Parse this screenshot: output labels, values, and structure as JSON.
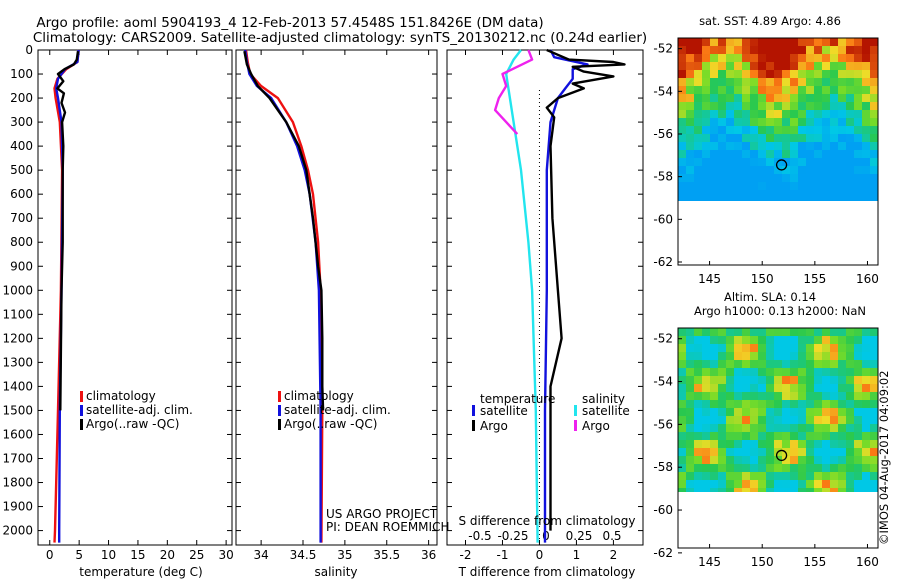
{
  "header": {
    "line1": "Argo profile: aoml 5904193_4 12-Feb-2013 57.4548S 151.8426E (DM data)",
    "line2": "Climatology: CARS2009. Satellite-adjusted climatology: synTS_20130212.nc (0.24d earlier)"
  },
  "colors": {
    "climatology": "#ee1111",
    "satellite": "#1111dd",
    "argo": "#000000",
    "salinity_satellite": "#22e5ee",
    "salinity_argo": "#ee22ee"
  },
  "chart_data": [
    {
      "type": "line",
      "xlabel": "temperature (deg C)",
      "ylabel": "",
      "xlim": [
        -2,
        31
      ],
      "ylim": [
        2060,
        0
      ],
      "xticks": [
        0,
        5,
        10,
        15,
        20,
        25,
        30
      ],
      "yticks": [
        0,
        100,
        200,
        300,
        400,
        500,
        600,
        700,
        800,
        900,
        1000,
        1100,
        1200,
        1300,
        1400,
        1500,
        1600,
        1700,
        1800,
        1900,
        2000
      ],
      "legend": [
        "climatology",
        "satellite-adj. clim.",
        "Argo(..raw -QC)"
      ],
      "series": [
        {
          "name": "climatology",
          "y": [
            0,
            50,
            80,
            120,
            160,
            200,
            300,
            500,
            1000,
            1500,
            2000,
            2050
          ],
          "x": [
            4.9,
            4.7,
            2.8,
            1.3,
            0.8,
            1.0,
            1.7,
            2.1,
            1.9,
            1.4,
            0.9,
            0.8
          ]
        },
        {
          "name": "satellite-adj. clim.",
          "y": [
            0,
            50,
            80,
            120,
            160,
            200,
            300,
            500,
            1000,
            1500,
            2000,
            2050
          ],
          "x": [
            4.9,
            4.7,
            2.6,
            1.4,
            1.1,
            1.4,
            2.0,
            2.2,
            2.0,
            1.7,
            1.6,
            1.6
          ]
        },
        {
          "name": "Argo(..raw -QC)",
          "y": [
            5,
            40,
            60,
            80,
            100,
            130,
            160,
            180,
            220,
            260,
            300,
            400,
            500,
            800,
            1000,
            1500
          ],
          "x": [
            4.8,
            4.6,
            4.1,
            2.5,
            1.4,
            2.3,
            1.3,
            2.4,
            2.0,
            2.6,
            2.1,
            2.3,
            2.2,
            2.2,
            2.0,
            1.8
          ]
        }
      ]
    },
    {
      "type": "line",
      "xlabel": "salinity",
      "xlim": [
        33.7,
        36.1
      ],
      "ylim": [
        2060,
        0
      ],
      "xticks": [
        34,
        34.5,
        35,
        35.5,
        36
      ],
      "legend": [
        "climatology",
        "satellite-adj. clim.",
        "Argo(..raw -QC)"
      ],
      "series": [
        {
          "name": "climatology",
          "y": [
            0,
            50,
            100,
            150,
            200,
            300,
            400,
            500,
            600,
            800,
            1000,
            1500,
            2050
          ],
          "x": [
            33.82,
            33.84,
            33.87,
            34.0,
            34.2,
            34.38,
            34.48,
            34.56,
            34.62,
            34.68,
            34.71,
            34.73,
            34.72
          ]
        },
        {
          "name": "satellite-adj. clim.",
          "y": [
            0,
            50,
            100,
            150,
            200,
            300,
            400,
            500,
            600,
            800,
            1000,
            1500,
            2050
          ],
          "x": [
            33.81,
            33.83,
            33.86,
            33.95,
            34.12,
            34.3,
            34.43,
            34.52,
            34.58,
            34.65,
            34.69,
            34.71,
            34.71
          ]
        },
        {
          "name": "Argo(..raw -QC)",
          "y": [
            5,
            60,
            100,
            150,
            200,
            300,
            400,
            500,
            700,
            900,
            1000,
            1200,
            1400,
            1500
          ],
          "x": [
            33.8,
            33.83,
            33.88,
            33.96,
            34.1,
            34.3,
            34.45,
            34.54,
            34.62,
            34.68,
            34.72,
            34.73,
            34.73,
            34.74
          ]
        }
      ],
      "annotation": [
        "US ARGO PROJECT",
        "PI: DEAN ROEMMICH"
      ]
    },
    {
      "type": "line",
      "xlabel": "T difference from climatology",
      "top_label": "S difference from climatology",
      "xlim": [
        -2.5,
        2.8
      ],
      "ylim": [
        2060,
        0
      ],
      "xticks": [
        -2,
        -1,
        0,
        1,
        2
      ],
      "top_xticks": [
        "-0.5",
        "-0.25",
        "0",
        "0.25",
        "0.5"
      ],
      "legend_temperature": {
        "title": "temperature",
        "items": [
          "satellite",
          "Argo"
        ]
      },
      "legend_salinity": {
        "title": "salinity",
        "items": [
          "satellite",
          "Argo"
        ]
      },
      "series": [
        {
          "name": "temperature satellite",
          "y": [
            0,
            30,
            60,
            80,
            120,
            160,
            200,
            300,
            500,
            1000,
            1500,
            2050
          ],
          "x": [
            0.3,
            0.4,
            1.3,
            0.9,
            0.9,
            0.7,
            0.5,
            0.3,
            0.2,
            0.2,
            0.15,
            0.15
          ]
        },
        {
          "name": "temperature Argo",
          "y": [
            0,
            20,
            40,
            50,
            60,
            70,
            90,
            110,
            140,
            160,
            200,
            240,
            280,
            400,
            700,
            1000,
            1200,
            1400,
            1500,
            2000
          ],
          "x": [
            0.2,
            0.5,
            0.8,
            2.0,
            2.3,
            0.9,
            1.2,
            2.0,
            0.9,
            1.2,
            0.5,
            0.2,
            0.4,
            0.3,
            0.35,
            0.5,
            0.6,
            0.3,
            0.3,
            0.3
          ]
        },
        {
          "name": "salinity satellite",
          "y": [
            0,
            40,
            100,
            200,
            300,
            500,
            800,
            1000,
            1500,
            2050
          ],
          "x": [
            -0.5,
            -0.7,
            -0.9,
            -0.8,
            -0.7,
            -0.5,
            -0.3,
            -0.2,
            -0.1,
            -0.05
          ]
        },
        {
          "name": "salinity Argo",
          "y": [
            0,
            40,
            100,
            150,
            200,
            250,
            300,
            350
          ],
          "x": [
            -0.3,
            -0.2,
            -1.0,
            -0.9,
            -1.1,
            -1.2,
            -0.9,
            -0.6
          ]
        }
      ]
    },
    {
      "type": "heatmap",
      "title": "sat. SST: 4.89  Argo: 4.86",
      "xlim": [
        142,
        161
      ],
      "ylim": [
        -63.5,
        -51.5
      ],
      "xticks": [
        145,
        150,
        155,
        160
      ],
      "yticks": [
        -52,
        -54,
        -56,
        -58,
        -60,
        -62
      ],
      "data_extent_lat": [
        -60,
        -51.5
      ],
      "marker": {
        "lon": 151.84,
        "lat": -57.45
      }
    },
    {
      "type": "heatmap",
      "title_line1": "Altim. SLA: 0.14",
      "title_line2": "Argo h1000: 0.13 h2000: NaN",
      "xlim": [
        142,
        161
      ],
      "ylim": [
        -63.5,
        -51.5
      ],
      "xticks": [
        145,
        150,
        155,
        160
      ],
      "yticks": [
        -52,
        -54,
        -56,
        -58,
        -60,
        -62
      ],
      "data_extent_lat": [
        -60,
        -51.5
      ],
      "marker": {
        "lon": 151.84,
        "lat": -57.45
      }
    }
  ],
  "credit": "©IMOS 04-Aug-2017 04:09:02"
}
